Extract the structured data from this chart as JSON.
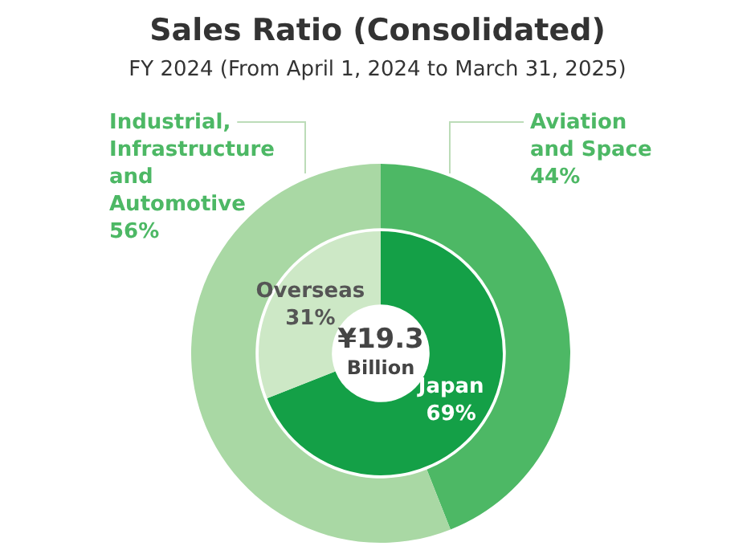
{
  "chart_data": [
    {
      "type": "donut",
      "title": "Sales Ratio (Consolidated)",
      "subtitle": "FY 2024 (From April 1, 2024 to March 31, 2025)",
      "categories": [
        "Aviation and Space",
        "Industrial, Infrastructure and Automotive"
      ],
      "values": [
        44,
        56
      ],
      "value_labels": [
        "44%",
        "56%"
      ],
      "colors": [
        "#4db865",
        "#a9d8a4"
      ],
      "legend": false
    },
    {
      "type": "donut",
      "categories": [
        "Japan",
        "Overseas"
      ],
      "values": [
        69,
        31
      ],
      "value_labels": [
        "69%",
        "31%"
      ],
      "colors": [
        "#14a047",
        "#cde8c6"
      ],
      "annotations": [
        "¥19.3 Billion"
      ],
      "legend": false
    }
  ]
}
